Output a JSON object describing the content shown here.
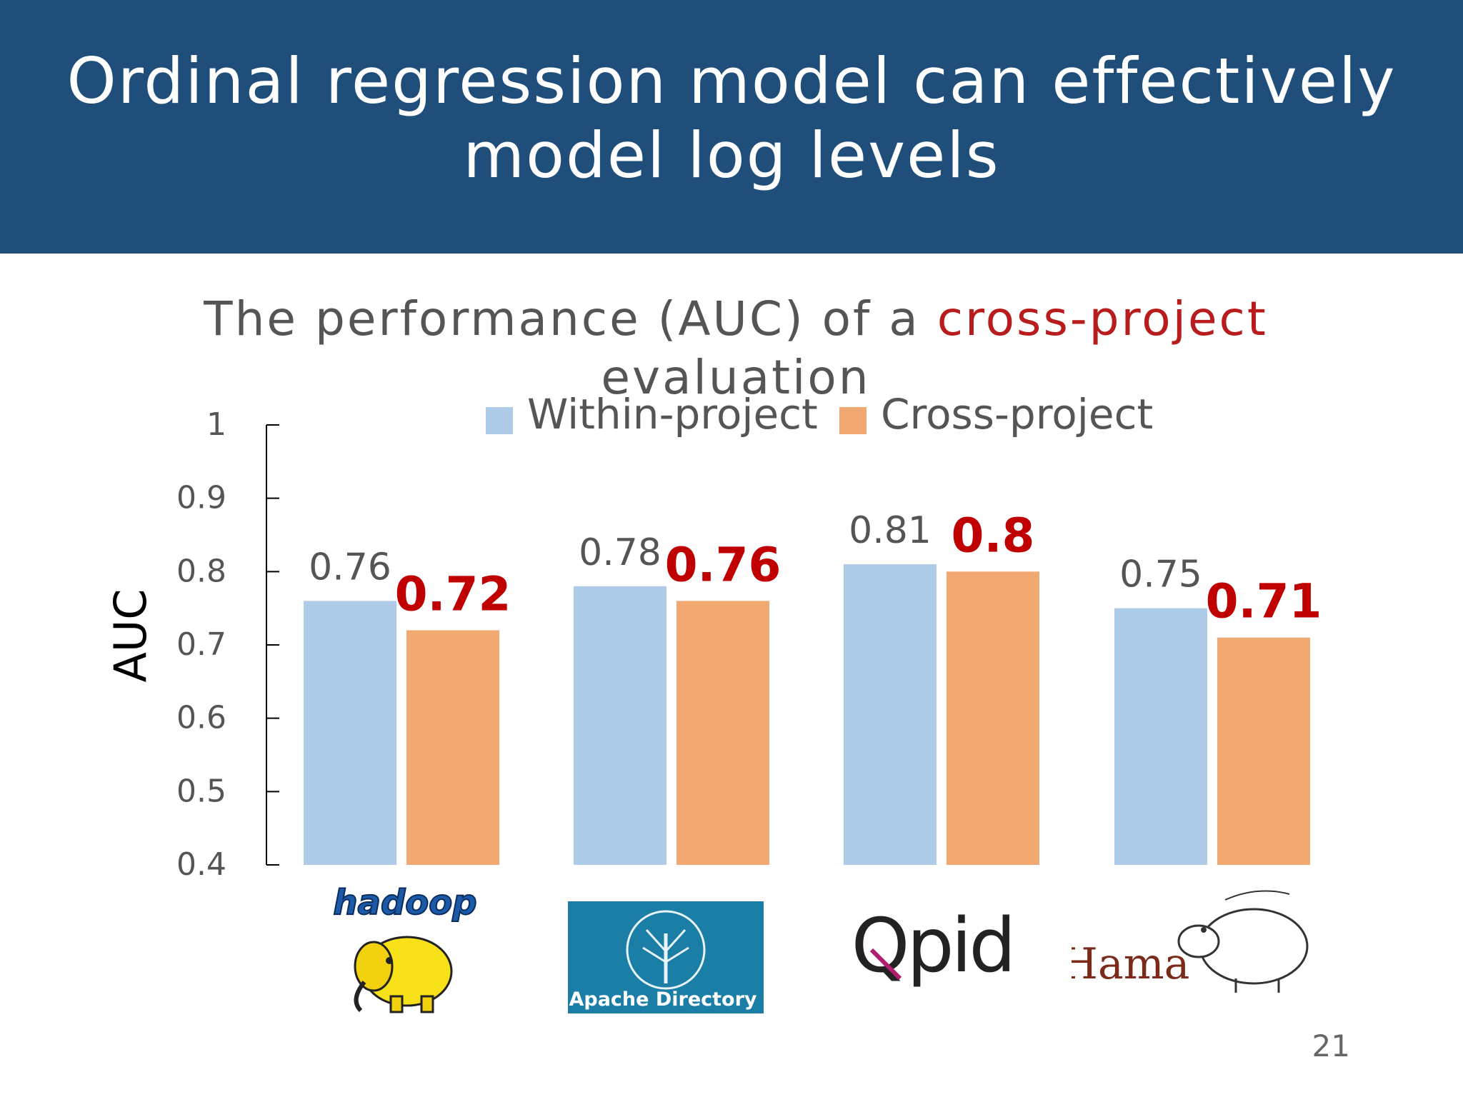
{
  "slide": {
    "title_line1": "Ordinal regression model can effectively",
    "title_line2": "model log levels",
    "page_number": "21",
    "header_color": "#204e7b"
  },
  "chart_title": {
    "before": "The performance (AUC) of a ",
    "highlight": "cross-project",
    "after": " evaluation",
    "highlight_color": "#b91c1c"
  },
  "logos": {
    "hadoop": "hadoop",
    "apache_directory": "Apache Directory",
    "qpid": "Qpid",
    "hama": "Hama"
  },
  "chart_data": {
    "type": "bar",
    "categories": [
      "hadoop",
      "Apache Directory",
      "Qpid",
      "Hama"
    ],
    "series": [
      {
        "name": "Within-project",
        "values": [
          0.76,
          0.78,
          0.81,
          0.75
        ],
        "labels": [
          "0.76",
          "0.78",
          "0.81",
          "0.75"
        ],
        "color": "#aecce8",
        "label_color": "#555555",
        "label_bold": false
      },
      {
        "name": "Cross-project",
        "values": [
          0.72,
          0.76,
          0.8,
          0.71
        ],
        "labels": [
          "0.72",
          "0.76",
          "0.8",
          "0.71"
        ],
        "color": "#f2a871",
        "label_color": "#c00000",
        "label_bold": true
      }
    ],
    "ylabel": "AUC",
    "ylim": [
      0.4,
      1
    ],
    "yticks": [
      0.4,
      0.5,
      0.6,
      0.7,
      0.8,
      0.9,
      1
    ],
    "ytick_labels": [
      "0.4",
      "0.5",
      "0.6",
      "0.7",
      "0.8",
      "0.9",
      "1"
    ],
    "legend_position": "top-center",
    "grid": false
  }
}
